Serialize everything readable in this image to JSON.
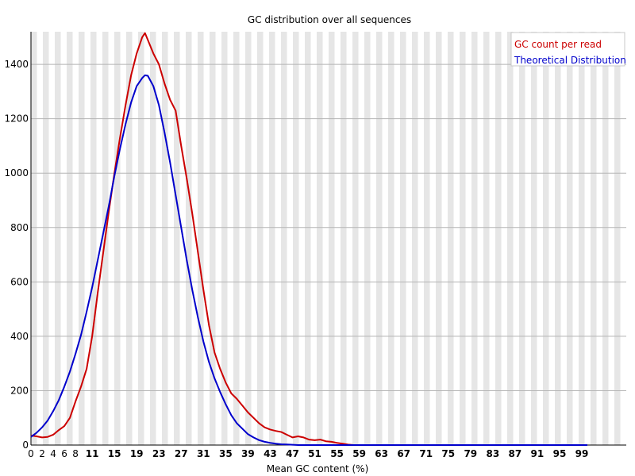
{
  "chart_data": {
    "type": "line",
    "title": "GC distribution over all sequences",
    "xlabel": "Mean GC content (%)",
    "ylabel": "",
    "xlim": [
      0,
      100
    ],
    "ylim": [
      0,
      1520
    ],
    "grid": true,
    "legend_position": "top-right",
    "yticks": [
      0,
      200,
      400,
      600,
      800,
      1000,
      1200,
      1400
    ],
    "xtick_labels": [
      "0",
      "2",
      "4",
      "6",
      "8",
      "11",
      "15",
      "19",
      "23",
      "27",
      "31",
      "35",
      "39",
      "43",
      "47",
      "51",
      "55",
      "59",
      "63",
      "67",
      "71",
      "75",
      "79",
      "83",
      "87",
      "91",
      "95",
      "99"
    ],
    "series": [
      {
        "name": "GC count per read",
        "color": "#cc0000",
        "points": [
          [
            0,
            35
          ],
          [
            1,
            32
          ],
          [
            2,
            28
          ],
          [
            3,
            30
          ],
          [
            4,
            38
          ],
          [
            5,
            55
          ],
          [
            6,
            70
          ],
          [
            7,
            100
          ],
          [
            8,
            160
          ],
          [
            9,
            215
          ],
          [
            10,
            280
          ],
          [
            11,
            400
          ],
          [
            12,
            560
          ],
          [
            13,
            710
          ],
          [
            14,
            860
          ],
          [
            15,
            1000
          ],
          [
            16,
            1130
          ],
          [
            17,
            1250
          ],
          [
            18,
            1360
          ],
          [
            19,
            1440
          ],
          [
            20,
            1500
          ],
          [
            20.5,
            1515
          ],
          [
            21,
            1490
          ],
          [
            22,
            1440
          ],
          [
            23,
            1400
          ],
          [
            24,
            1330
          ],
          [
            25,
            1270
          ],
          [
            26,
            1230
          ],
          [
            27,
            1100
          ],
          [
            28,
            980
          ],
          [
            29,
            850
          ],
          [
            30,
            710
          ],
          [
            31,
            570
          ],
          [
            32,
            440
          ],
          [
            33,
            340
          ],
          [
            34,
            280
          ],
          [
            35,
            230
          ],
          [
            36,
            190
          ],
          [
            37,
            170
          ],
          [
            38,
            145
          ],
          [
            39,
            120
          ],
          [
            40,
            100
          ],
          [
            41,
            80
          ],
          [
            42,
            65
          ],
          [
            43,
            57
          ],
          [
            44,
            52
          ],
          [
            45,
            48
          ],
          [
            46,
            38
          ],
          [
            47,
            28
          ],
          [
            48,
            32
          ],
          [
            49,
            28
          ],
          [
            50,
            20
          ],
          [
            51,
            18
          ],
          [
            52,
            20
          ],
          [
            53,
            14
          ],
          [
            54,
            12
          ],
          [
            55,
            8
          ],
          [
            56,
            5
          ],
          [
            57,
            2
          ],
          [
            58,
            0
          ],
          [
            59,
            0
          ],
          [
            60,
            0
          ],
          [
            65,
            0
          ],
          [
            70,
            0
          ],
          [
            75,
            0
          ],
          [
            80,
            0
          ],
          [
            85,
            0
          ],
          [
            90,
            0
          ],
          [
            95,
            0
          ],
          [
            100,
            0
          ]
        ]
      },
      {
        "name": "Theoretical Distribution",
        "color": "#0000cc",
        "points": [
          [
            0,
            30
          ],
          [
            1,
            45
          ],
          [
            2,
            65
          ],
          [
            3,
            90
          ],
          [
            4,
            125
          ],
          [
            5,
            165
          ],
          [
            6,
            215
          ],
          [
            7,
            270
          ],
          [
            8,
            335
          ],
          [
            9,
            405
          ],
          [
            10,
            490
          ],
          [
            11,
            580
          ],
          [
            12,
            680
          ],
          [
            13,
            780
          ],
          [
            14,
            880
          ],
          [
            15,
            990
          ],
          [
            16,
            1090
          ],
          [
            17,
            1180
          ],
          [
            18,
            1260
          ],
          [
            19,
            1320
          ],
          [
            20,
            1350
          ],
          [
            20.5,
            1360
          ],
          [
            21,
            1358
          ],
          [
            22,
            1320
          ],
          [
            23,
            1250
          ],
          [
            24,
            1150
          ],
          [
            25,
            1040
          ],
          [
            26,
            920
          ],
          [
            27,
            800
          ],
          [
            28,
            680
          ],
          [
            29,
            570
          ],
          [
            30,
            470
          ],
          [
            31,
            380
          ],
          [
            32,
            305
          ],
          [
            33,
            245
          ],
          [
            34,
            195
          ],
          [
            35,
            150
          ],
          [
            36,
            110
          ],
          [
            37,
            80
          ],
          [
            38,
            60
          ],
          [
            39,
            40
          ],
          [
            40,
            28
          ],
          [
            41,
            18
          ],
          [
            42,
            12
          ],
          [
            43,
            8
          ],
          [
            44,
            5
          ],
          [
            45,
            3
          ],
          [
            46,
            2
          ],
          [
            47,
            1
          ],
          [
            48,
            0
          ],
          [
            50,
            0
          ],
          [
            55,
            0
          ],
          [
            60,
            0
          ],
          [
            65,
            0
          ],
          [
            70,
            0
          ],
          [
            75,
            0
          ],
          [
            80,
            0
          ],
          [
            85,
            0
          ],
          [
            90,
            0
          ],
          [
            95,
            0
          ],
          [
            100,
            0
          ]
        ]
      }
    ]
  },
  "colors": {
    "stripe": "#e6e6e6",
    "gridline": "#b4b4b4",
    "axis": "#000000"
  }
}
